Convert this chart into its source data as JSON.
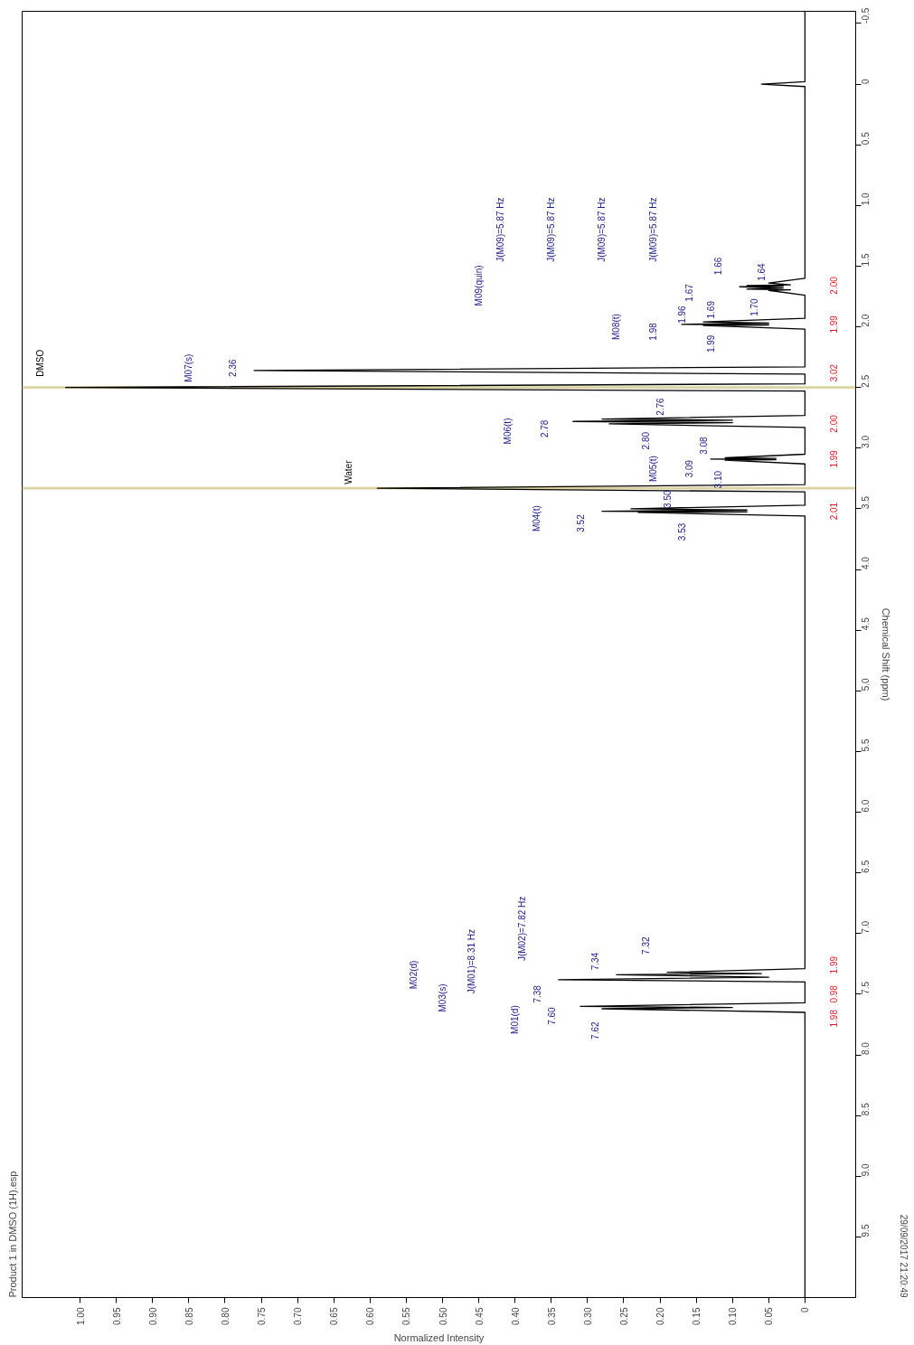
{
  "chart_data": {
    "type": "line",
    "title": "Product 1 in DMSO (1H).esp",
    "xlabel": "Normalized Intensity",
    "ylabel": "Chemical Shift (ppm)",
    "xlim": [
      1.08,
      -0.07
    ],
    "ylim": [
      10.0,
      -0.6
    ],
    "yticks": [
      {
        "value": -0.5,
        "label": "-0.5"
      },
      {
        "value": 0,
        "label": "0"
      },
      {
        "value": 0.5,
        "label": "0.5"
      },
      {
        "value": 1.0,
        "label": "1.0"
      },
      {
        "value": 1.5,
        "label": "1.5"
      },
      {
        "value": 2.0,
        "label": "2.0"
      },
      {
        "value": 2.5,
        "label": "2.5"
      },
      {
        "value": 3.0,
        "label": "3.0"
      },
      {
        "value": 3.5,
        "label": "3.5"
      },
      {
        "value": 4.0,
        "label": "4.0"
      },
      {
        "value": 4.5,
        "label": "4.5"
      },
      {
        "value": 5.0,
        "label": "5.0"
      },
      {
        "value": 5.5,
        "label": "5.5"
      },
      {
        "value": 6.0,
        "label": "6.0"
      },
      {
        "value": 6.5,
        "label": "6.5"
      },
      {
        "value": 7.0,
        "label": "7.0"
      },
      {
        "value": 7.5,
        "label": "7.5"
      },
      {
        "value": 8.0,
        "label": "8.0"
      },
      {
        "value": 8.5,
        "label": "8.5"
      },
      {
        "value": 9.0,
        "label": "9.0"
      },
      {
        "value": 9.5,
        "label": "9.5"
      }
    ],
    "xticks": [
      {
        "value": 0,
        "label": "0"
      },
      {
        "value": 0.05,
        "label": "0.05"
      },
      {
        "value": 0.1,
        "label": "0.10"
      },
      {
        "value": 0.15,
        "label": "0.15"
      },
      {
        "value": 0.2,
        "label": "0.20"
      },
      {
        "value": 0.25,
        "label": "0.25"
      },
      {
        "value": 0.3,
        "label": "0.30"
      },
      {
        "value": 0.35,
        "label": "0.35"
      },
      {
        "value": 0.4,
        "label": "0.40"
      },
      {
        "value": 0.45,
        "label": "0.45"
      },
      {
        "value": 0.5,
        "label": "0.50"
      },
      {
        "value": 0.55,
        "label": "0.55"
      },
      {
        "value": 0.6,
        "label": "0.60"
      },
      {
        "value": 0.65,
        "label": "0.65"
      },
      {
        "value": 0.7,
        "label": "0.70"
      },
      {
        "value": 0.75,
        "label": "0.75"
      },
      {
        "value": 0.8,
        "label": "0.80"
      },
      {
        "value": 0.85,
        "label": "0.85"
      },
      {
        "value": 0.9,
        "label": "0.90"
      },
      {
        "value": 0.95,
        "label": "0.95"
      },
      {
        "value": 1.0,
        "label": "1.00"
      }
    ],
    "grid": false,
    "marker": "none",
    "line_style": "solid",
    "x": [
      0,
      0,
      0.06,
      0,
      0,
      0.05,
      0.02,
      0.08,
      0.03,
      0.09,
      0.03,
      0.08,
      0.02,
      0.05,
      0,
      0,
      0.14,
      0.05,
      0.17,
      0.05,
      0.14,
      0,
      0,
      0.76,
      0,
      0,
      1.02,
      0,
      0,
      0.28,
      0.1,
      0.32,
      0.1,
      0.27,
      0,
      0,
      0.11,
      0.04,
      0.13,
      0.04,
      0.11,
      0,
      0,
      0.59,
      0,
      0,
      0.24,
      0.08,
      0.28,
      0.08,
      0.23,
      0,
      0,
      0.19,
      0.06,
      0.26,
      0.05,
      0.34,
      0,
      0,
      0.31,
      0.1,
      0.28,
      0,
      0
    ],
    "series": [
      {
        "color": "#000000",
        "values": [
          -0.6,
          -0.02,
          0,
          0.02,
          1.6,
          1.64,
          1.655,
          1.66,
          1.665,
          1.67,
          1.68,
          1.69,
          1.695,
          1.7,
          1.74,
          1.93,
          1.96,
          1.97,
          1.98,
          1.985,
          1.99,
          2.02,
          2.33,
          2.36,
          2.39,
          2.47,
          2.5,
          2.53,
          2.73,
          2.76,
          2.77,
          2.78,
          2.79,
          2.8,
          2.83,
          3.05,
          3.08,
          3.085,
          3.09,
          3.095,
          3.1,
          3.13,
          3.3,
          3.33,
          3.36,
          3.47,
          3.5,
          3.51,
          3.52,
          3.525,
          3.53,
          3.56,
          7.29,
          7.32,
          7.33,
          7.34,
          7.36,
          7.38,
          7.4,
          7.57,
          7.6,
          7.61,
          7.62,
          7.65,
          10.0
        ]
      }
    ],
    "bands": [
      {
        "axis": "y",
        "from": 2.49,
        "to": 2.51,
        "color": "#d9d4a0"
      },
      {
        "axis": "y",
        "from": 3.32,
        "to": 3.34,
        "color": "#d9d4a0"
      }
    ],
    "annotations": [
      "29/09/2017 21:20:49",
      "DMSO",
      "Water",
      "M07(s)",
      "2.36",
      "M09(quin)",
      "J(M09)=5.87 Hz",
      "J(M09)=5.87 Hz",
      "J(M09)=5.87 Hz",
      "J(M09)=5.87 Hz",
      "1.66",
      "1.67",
      "1.64",
      "1.69",
      "1.70",
      "M08(t)",
      "1.98",
      "1.96",
      "1.99",
      "M06(t)",
      "2.78",
      "2.76",
      "2.80",
      "M05(t)",
      "3.08",
      "3.09",
      "3.10",
      "M04(t)",
      "3.52",
      "3.50",
      "3.53",
      "M02(d)",
      "M03(s)",
      "J(M01)=8.31 Hz",
      "J(M02)=7.82 Hz",
      "7.38",
      "7.34",
      "7.32",
      "M01(d)",
      "7.60",
      "7.62",
      "2.00",
      "1.99",
      "3.02",
      "2.00",
      "1.99",
      "2.01",
      "1.99",
      "0.98",
      "1.98"
    ]
  }
}
